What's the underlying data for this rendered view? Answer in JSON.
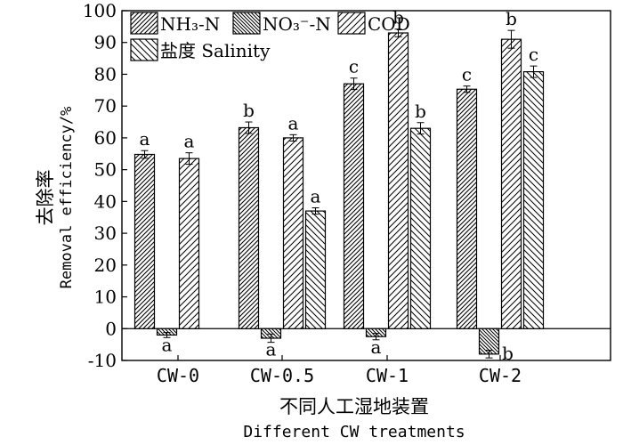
{
  "chart_data": {
    "type": "bar",
    "title": "",
    "xlabel_cn": "不同人工湿地装置",
    "xlabel_en": "Different CW treatments",
    "ylabel_cn": "去除率",
    "ylabel_en": "Removal efficiency/%",
    "ylim": [
      -10,
      100
    ],
    "yticks": [
      -10,
      0,
      10,
      20,
      30,
      40,
      50,
      60,
      70,
      80,
      90,
      100
    ],
    "categories": [
      "CW-0",
      "CW-0.5",
      "CW-1",
      "CW-2"
    ],
    "legend_position": "top-left",
    "series": [
      {
        "name": "NH₃-N",
        "values": [
          54.8,
          63.2,
          77.0,
          75.3
        ],
        "errors": [
          1.2,
          1.8,
          1.8,
          1.0
        ],
        "labels": [
          "a",
          "b",
          "c",
          "c"
        ]
      },
      {
        "name": "NO₃⁻-N",
        "values": [
          -2.0,
          -3.0,
          -2.5,
          -8.0
        ],
        "errors": [
          0.8,
          1.3,
          1.0,
          1.2
        ],
        "labels": [
          "a",
          "a",
          "a",
          "b"
        ]
      },
      {
        "name": "COD",
        "values": [
          53.5,
          60.0,
          93.0,
          91.0
        ],
        "errors": [
          1.8,
          1.0,
          1.2,
          2.8
        ],
        "labels": [
          "a",
          "a",
          "b",
          "b"
        ]
      },
      {
        "name": "盐度 Salinity",
        "values": [
          null,
          37.0,
          63.0,
          80.8
        ],
        "errors": [
          null,
          1.0,
          1.8,
          1.8
        ],
        "labels": [
          null,
          "a",
          "b",
          "c"
        ]
      }
    ]
  }
}
